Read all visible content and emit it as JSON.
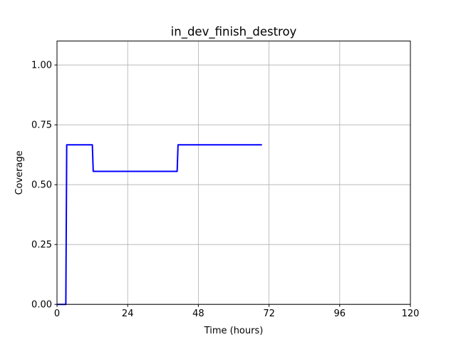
{
  "chart_data": {
    "type": "line",
    "title": "in_dev_finish_destroy",
    "xlabel": "Time (hours)",
    "ylabel": "Coverage",
    "xlim": [
      0,
      120
    ],
    "ylim": [
      0,
      1.1
    ],
    "x_ticks": [
      0,
      24,
      48,
      72,
      96,
      120
    ],
    "x_tick_labels": [
      "0",
      "24",
      "48",
      "72",
      "96",
      "120"
    ],
    "y_ticks": [
      0,
      0.25,
      0.5,
      0.75,
      1.0
    ],
    "y_tick_labels": [
      "0.00",
      "0.25",
      "0.50",
      "0.75",
      "1.00"
    ],
    "grid": true,
    "series": [
      {
        "color": "#0000ff",
        "x": [
          0,
          3,
          3.3,
          12.0,
          12.3,
          40.8,
          41.1,
          69.6
        ],
        "y": [
          0,
          0,
          0.6667,
          0.6667,
          0.5556,
          0.5556,
          0.6667,
          0.6667
        ]
      }
    ]
  }
}
